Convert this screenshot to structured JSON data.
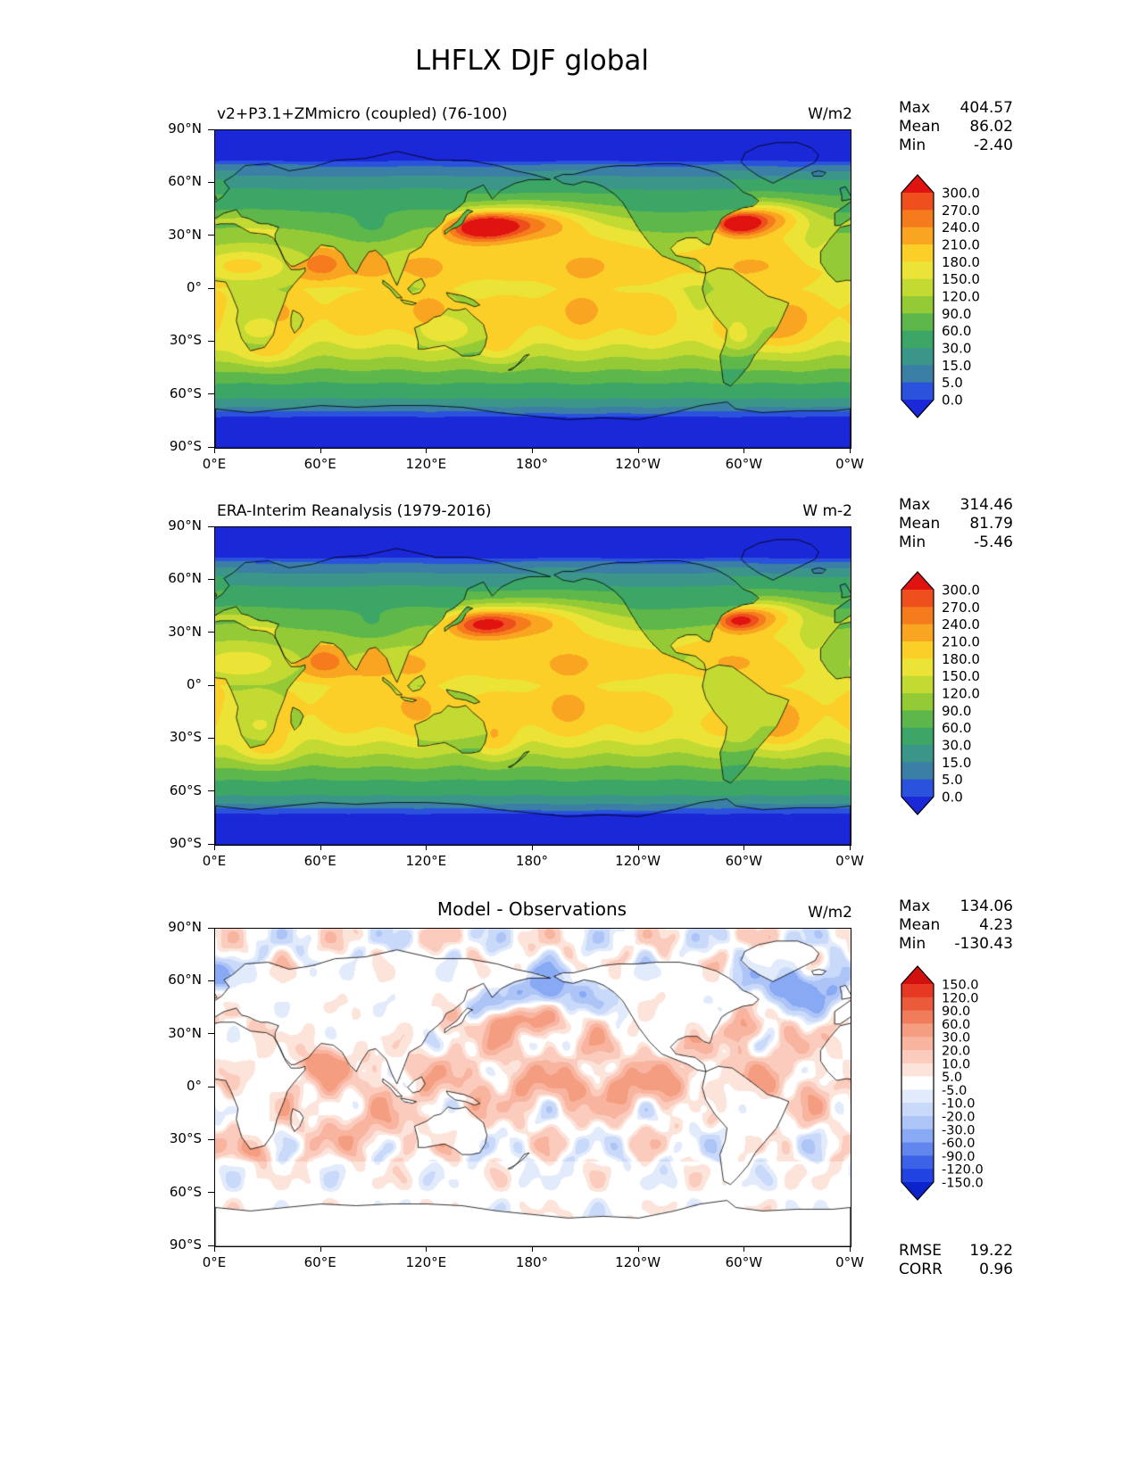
{
  "page_title": "LHFLX DJF global",
  "chart_data": {
    "type": "heatmap",
    "axes": {
      "lat_ticks": [
        "90°N",
        "60°N",
        "30°N",
        "0°",
        "30°S",
        "60°S",
        "90°S"
      ],
      "lat_values": [
        90,
        60,
        30,
        0,
        -30,
        -60,
        -90
      ],
      "lon_ticks": [
        "0°E",
        "60°E",
        "120°E",
        "180°",
        "120°W",
        "60°W",
        "0°W"
      ],
      "lon_values": [
        0,
        60,
        120,
        180,
        240,
        300,
        360
      ]
    },
    "panels": [
      {
        "id": "model",
        "kind": "model",
        "title": "v2+P3.1+ZMmicro (coupled) (76-100)",
        "units": "W/m2",
        "stats": [
          {
            "label": "Max",
            "value": "404.57"
          },
          {
            "label": "Mean",
            "value": "86.02"
          },
          {
            "label": "Min",
            "value": "-2.40"
          }
        ],
        "colorbar": {
          "levels": [
            "300.0",
            "270.0",
            "240.0",
            "210.0",
            "180.0",
            "150.0",
            "120.0",
            "90.0",
            "60.0",
            "30.0",
            "15.0",
            "5.0",
            "0.0"
          ],
          "colors": [
            "#ee4f1d",
            "#f57b1d",
            "#f9a521",
            "#fbcf27",
            "#ebe437",
            "#c3da33",
            "#95ca37",
            "#5eb74a",
            "#3ca666",
            "#3b9689",
            "#3b7fa6",
            "#2a52dd"
          ],
          "over": "#e01310",
          "under": "#1a28d8"
        }
      },
      {
        "id": "obs",
        "kind": "reanalysis",
        "title": "ERA-Interim Reanalysis (1979-2016)",
        "units": "W m-2",
        "stats": [
          {
            "label": "Max",
            "value": "314.46"
          },
          {
            "label": "Mean",
            "value": "81.79"
          },
          {
            "label": "Min",
            "value": "-5.46"
          }
        ],
        "colorbar": {
          "levels": [
            "300.0",
            "270.0",
            "240.0",
            "210.0",
            "180.0",
            "150.0",
            "120.0",
            "90.0",
            "60.0",
            "30.0",
            "15.0",
            "5.0",
            "0.0"
          ],
          "colors": [
            "#ee4f1d",
            "#f57b1d",
            "#f9a521",
            "#fbcf27",
            "#ebe437",
            "#c3da33",
            "#95ca37",
            "#5eb74a",
            "#3ca666",
            "#3b9689",
            "#3b7fa6",
            "#2a52dd"
          ],
          "over": "#e01310",
          "under": "#1a28d8"
        }
      },
      {
        "id": "diff",
        "kind": "difference",
        "title": "Model - Observations",
        "units": "W/m2",
        "stats": [
          {
            "label": "Max",
            "value": "134.06"
          },
          {
            "label": "Mean",
            "value": "4.23"
          },
          {
            "label": "Min",
            "value": "-130.43"
          }
        ],
        "extra_stats": [
          {
            "label": "RMSE",
            "value": "19.22"
          },
          {
            "label": "CORR",
            "value": "0.96"
          }
        ],
        "colorbar": {
          "levels": [
            "150.0",
            "120.0",
            "90.0",
            "60.0",
            "30.0",
            "20.0",
            "10.0",
            "5.0",
            "-5.0",
            "-10.0",
            "-20.0",
            "-30.0",
            "-60.0",
            "-90.0",
            "-120.0",
            "-150.0"
          ],
          "colors": [
            "#e63822",
            "#ec5a3c",
            "#f17c5b",
            "#f59d80",
            "#f8b49e",
            "#fbccbd",
            "#fde4da",
            "#ffffff",
            "#e2ebfc",
            "#c9d9fa",
            "#adc4f7",
            "#88a9f4",
            "#6187ef",
            "#3c62e8",
            "#2143e2"
          ],
          "over": "#d01110",
          "under": "#0c22ca"
        }
      }
    ]
  }
}
